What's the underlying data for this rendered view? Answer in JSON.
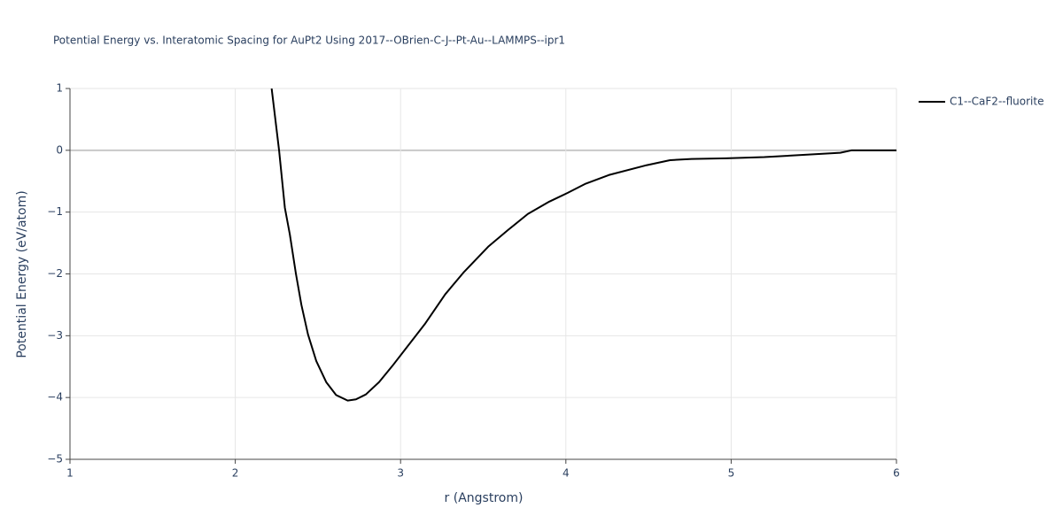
{
  "chart_data": {
    "type": "line",
    "title": "Potential Energy vs. Interatomic Spacing for AuPt2 Using 2017--OBrien-C-J--Pt-Au--LAMMPS--ipr1",
    "x_label": "r (Angstrom)",
    "y_label": "Potential Energy (eV/atom)",
    "xlim": [
      1,
      6
    ],
    "ylim": [
      -5,
      1
    ],
    "xticks": [
      1,
      2,
      3,
      4,
      5,
      6
    ],
    "yticks": [
      {
        "value": -5,
        "label": "−5"
      },
      {
        "value": -4,
        "label": "−4"
      },
      {
        "value": -3,
        "label": "−3"
      },
      {
        "value": -2,
        "label": "−2"
      },
      {
        "value": -1,
        "label": "−1"
      },
      0,
      1
    ],
    "grid": true,
    "legend_position": "top-right",
    "x": [
      2.22,
      2.265,
      2.3,
      2.33,
      2.367,
      2.4,
      2.44,
      2.49,
      2.55,
      2.61,
      2.68,
      2.73,
      2.79,
      2.87,
      2.95,
      3.04,
      3.15,
      3.27,
      3.38,
      3.53,
      3.65,
      3.77,
      3.9,
      4.01,
      4.12,
      4.26,
      4.49,
      4.63,
      4.76,
      4.97,
      5.2,
      5.66,
      5.73,
      6.0
    ],
    "series": [
      {
        "name": "C1--CaF2--fluorite",
        "color": "#000000",
        "values": [
          1.0,
          0,
          -0.93,
          -1.36,
          -2.0,
          -2.5,
          -2.98,
          -3.41,
          -3.75,
          -3.96,
          -4.05,
          -4.03,
          -3.95,
          -3.75,
          -3.49,
          -3.18,
          -2.8,
          -2.33,
          -1.98,
          -1.56,
          -1.29,
          -1.03,
          -0.83,
          -0.69,
          -0.54,
          -0.4,
          -0.24,
          -0.16,
          -0.14,
          -0.13,
          -0.11,
          -0.04,
          0,
          0
        ]
      }
    ]
  }
}
